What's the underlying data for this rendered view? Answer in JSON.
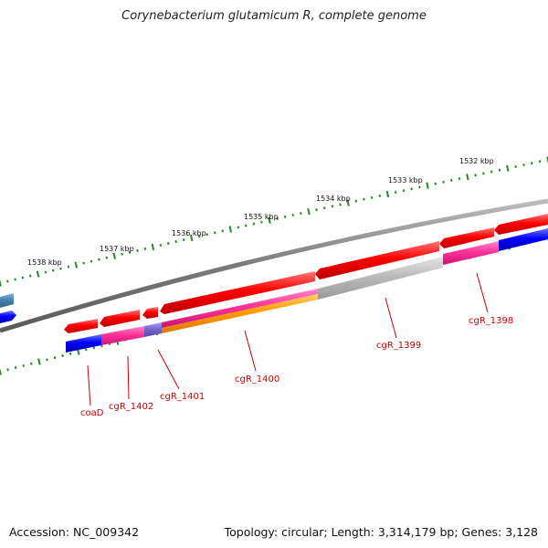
{
  "title": "Corynebacterium glutamicum R, complete genome",
  "footer": {
    "accession": "Accession: NC_009342",
    "topology": "Topology: circular; Length: 3,314,179 bp; Genes: 3,128"
  },
  "colors": {
    "backbone": "#808080",
    "tick": "#228b22",
    "cds_forward": "#ff0000",
    "label": "#cc0000",
    "blue": "#0000ff",
    "pink": "#ff3399",
    "gray": "#bbbbbb",
    "orange": "#ff9900",
    "purple": "#7766cc",
    "steel": "#4682b4"
  },
  "scale_labels": [
    "1538 kbp",
    "1537 kbp",
    "1536 kbp",
    "1535 kbp",
    "1534 kbp",
    "1533 kbp",
    "1532 kbp"
  ],
  "gene_labels": [
    "coaD",
    "cgR_1402",
    "cgR_1401",
    "cgR_1400",
    "cgR_1399",
    "cgR_1398"
  ]
}
